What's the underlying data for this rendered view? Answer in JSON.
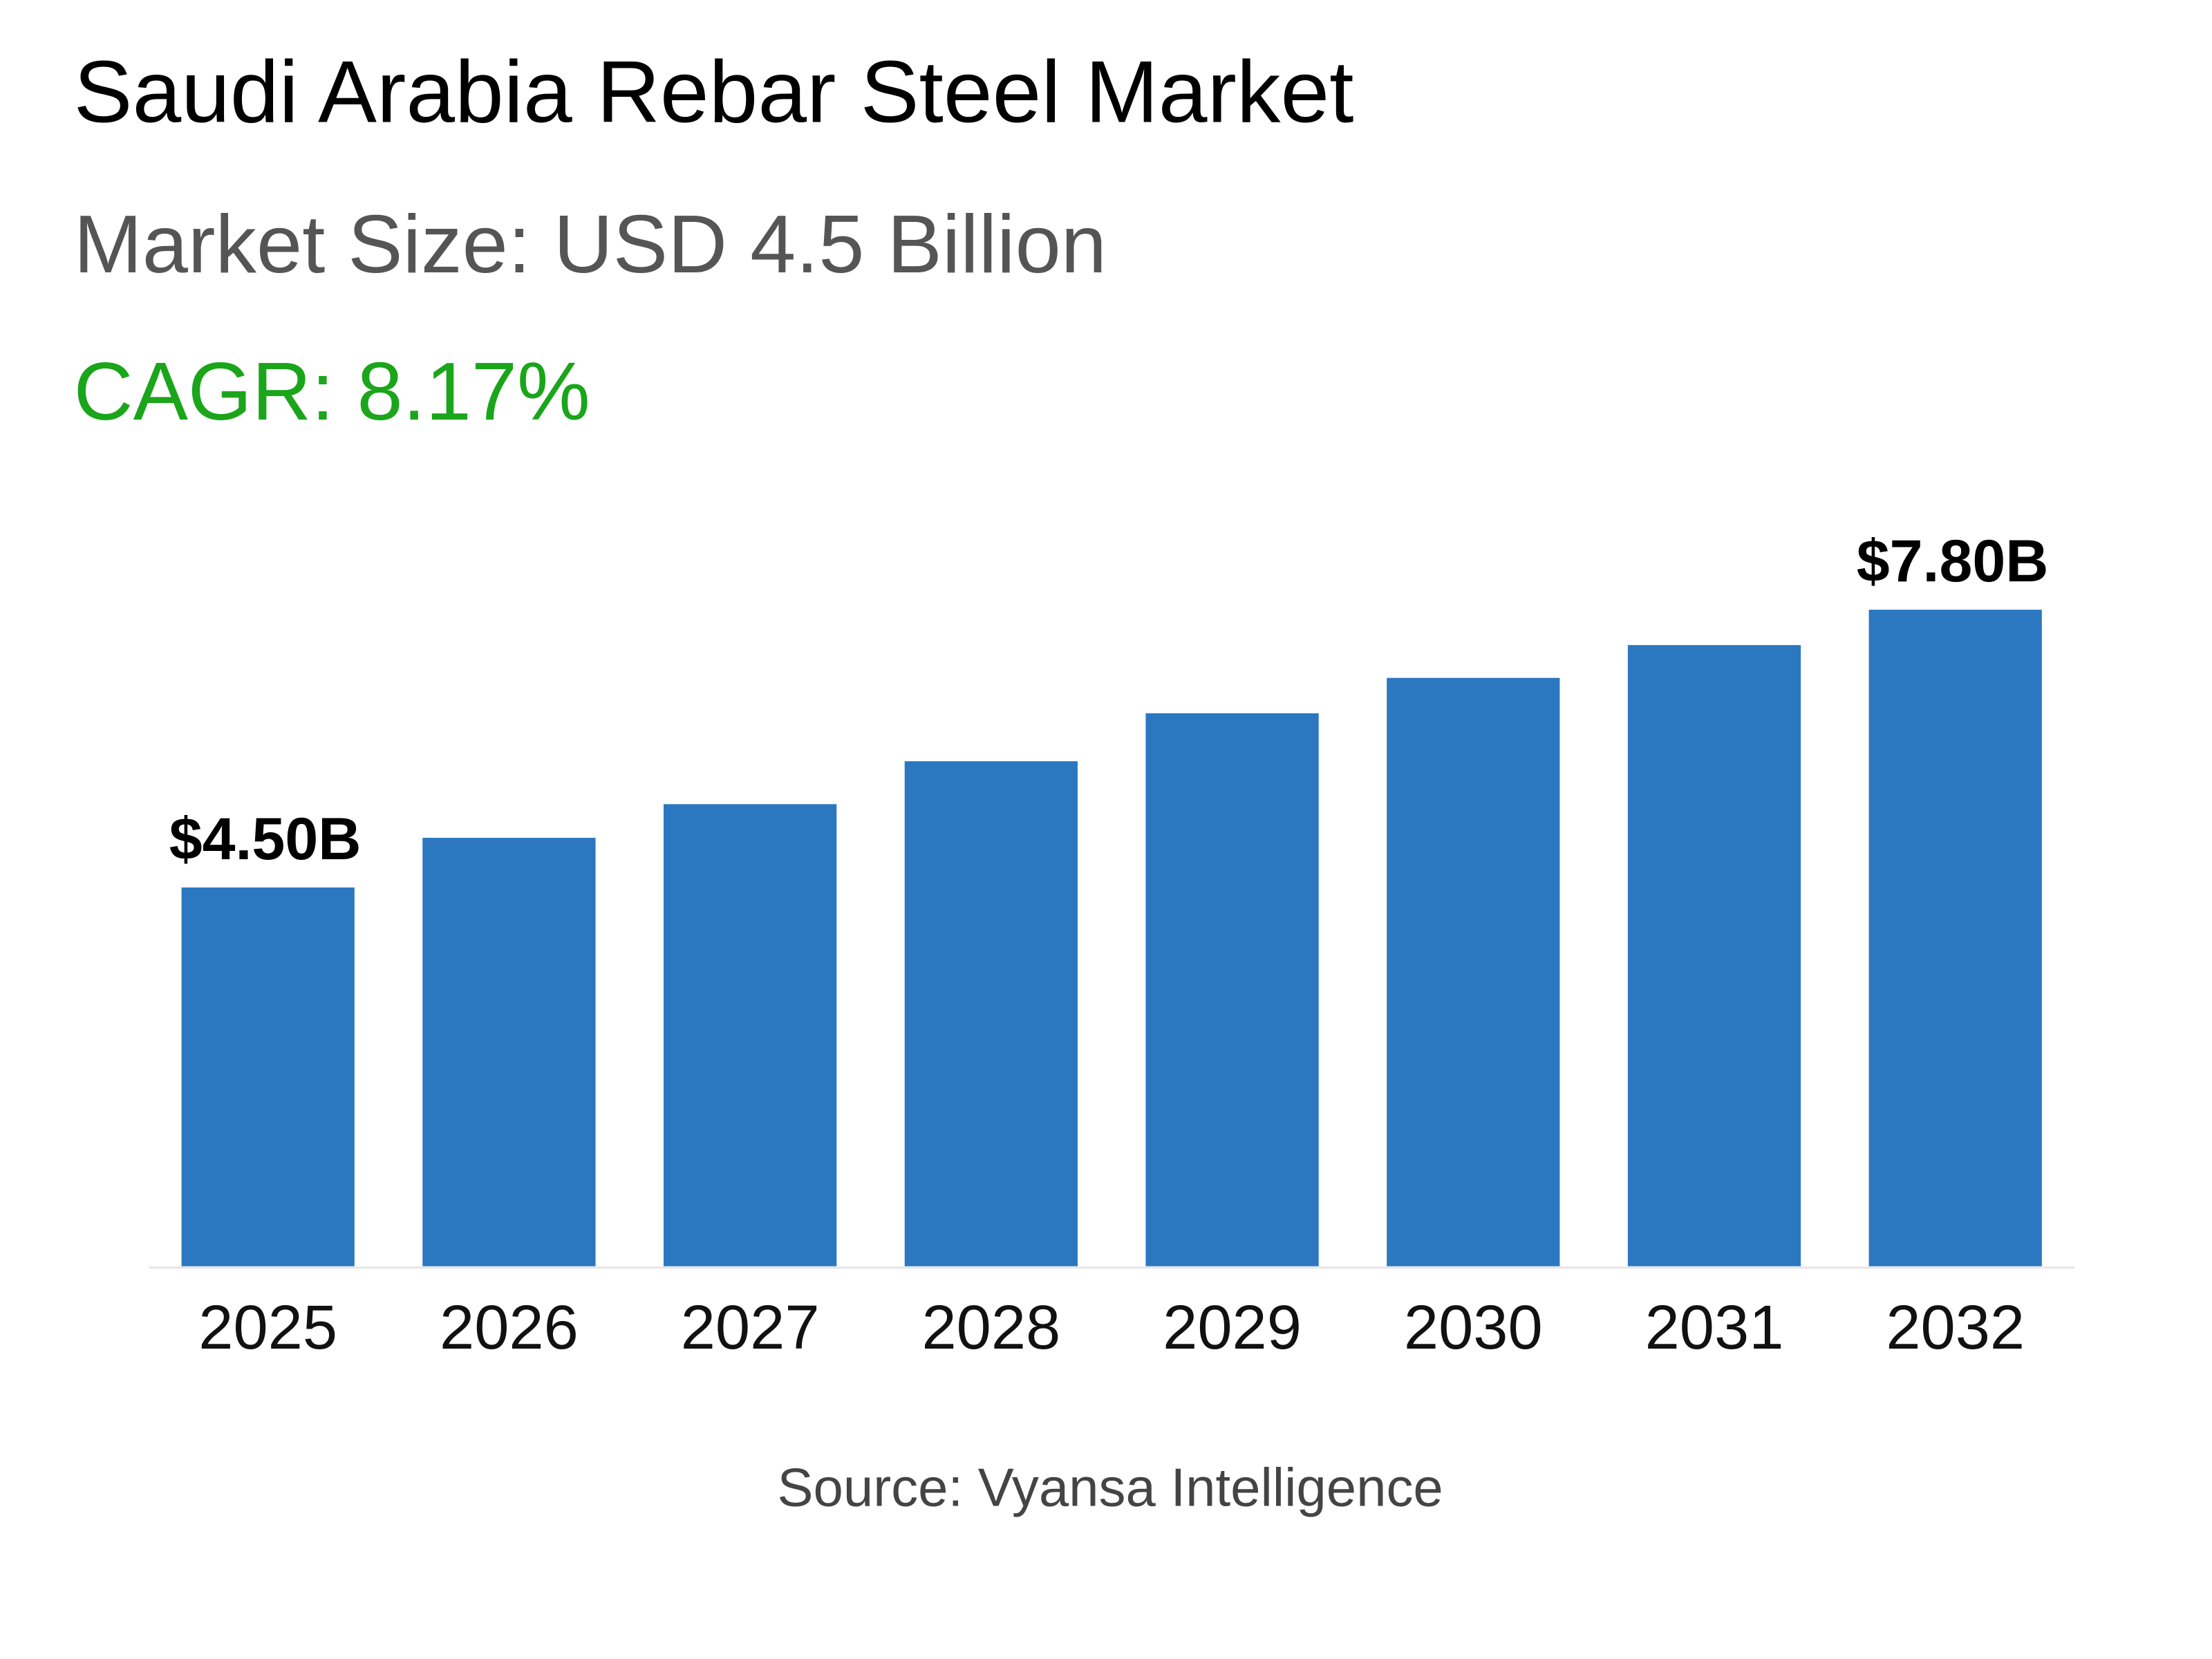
{
  "header": {
    "title": "Saudi Arabia Rebar Steel Market",
    "market_size": "Market Size: USD 4.5 Billion",
    "cagr": "CAGR: 8.17%"
  },
  "source": "Source: Vyansa Intelligence",
  "colors": {
    "bar": "#2b78c0",
    "cagr": "#1aa51a",
    "subtitle": "#555555"
  },
  "chart_data": {
    "type": "bar",
    "categories": [
      "2025",
      "2026",
      "2027",
      "2028",
      "2029",
      "2030",
      "2031",
      "2032"
    ],
    "values": [
      4.5,
      5.09,
      5.49,
      6.0,
      6.57,
      6.99,
      7.38,
      7.8
    ],
    "data_labels": {
      "0": "$4.50B",
      "7": "$7.80B"
    },
    "ylim": [
      0,
      7.8
    ],
    "grid": false,
    "xlabel": "",
    "ylabel": ""
  }
}
